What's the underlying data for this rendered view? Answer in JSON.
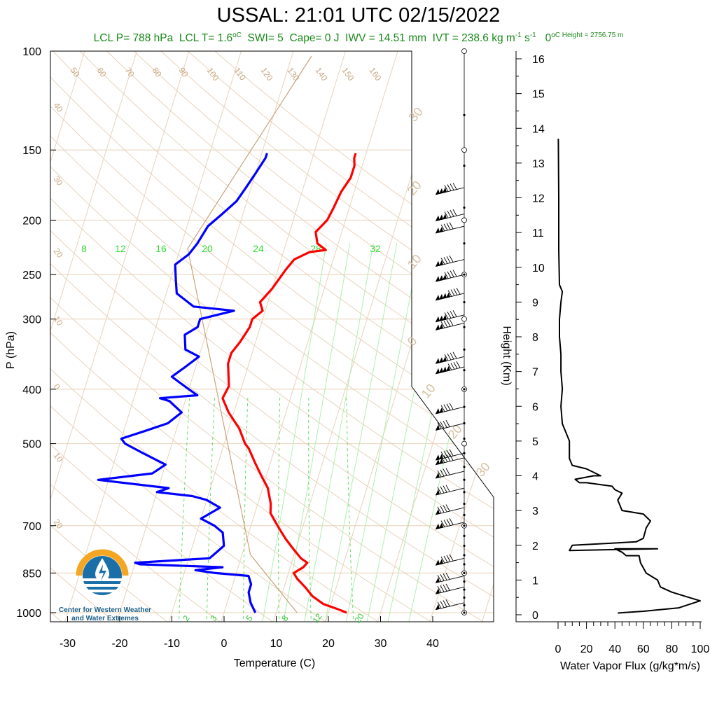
{
  "header": {
    "title": "USSAL: 21:01 UTC 02/15/2022",
    "lcl_p": "LCL P= 788 hPa",
    "lcl_t": "LCL T= 1.6",
    "lcl_t_unit": "oC",
    "swi": "SWI= 5",
    "cape": "Cape= 0 J",
    "iwv": "IWV = 14.51 mm",
    "ivt": "IVT = 238.6 kg m",
    "ivt_exp1": "-1",
    "ivt_mid": " s",
    "ivt_exp2": "-1",
    "zero_height": "0",
    "zero_height_unit": "oC Height = 2756.75 m"
  },
  "logo": {
    "line1": "Center for Western Weather",
    "line2": "and Water Extremes"
  },
  "colors": {
    "temperature": "#ff0000",
    "dewpoint": "#0000ff",
    "isotherm": "#c8a882",
    "mixing_ratio": "#33dd33",
    "logo_orange": "#f5a623",
    "logo_blue": "#1b6fa8"
  },
  "chart_data": [
    {
      "type": "line",
      "subtype": "skew-t",
      "xlabel": "Temperature (C)",
      "ylabel": "P (hPa)",
      "xlim": [
        -34,
        52
      ],
      "ylim": [
        1000,
        100
      ],
      "y_scale": "log",
      "x_ticks": [
        "-30",
        "-20",
        "-10",
        "0",
        "10",
        "20",
        "30",
        "40"
      ],
      "y_ticks": [
        "100",
        "150",
        "200",
        "250",
        "300",
        "400",
        "500",
        "700",
        "850",
        "1000"
      ],
      "isotherm_labels_upper": [
        "50",
        "60",
        "70",
        "80",
        "90",
        "100",
        "110",
        "120",
        "130",
        "140",
        "150",
        "160"
      ],
      "isotherm_labels_left": [
        "40",
        "30",
        "20",
        "10",
        "0",
        "10",
        "20"
      ],
      "isotherm_labels_right": [
        "30",
        "20",
        "10",
        "0",
        "10",
        "20",
        "30"
      ],
      "mixing_ratio_labels_upper": [
        "8",
        "12",
        "16",
        "20",
        "24",
        "28",
        "32"
      ],
      "mixing_ratio_labels_lower": [
        "2",
        "3",
        "5",
        "8",
        "12",
        "20"
      ],
      "series": [
        {
          "name": "Temperature",
          "points": [
            [
              23.5,
              1000
            ],
            [
              21.5,
              985
            ],
            [
              18.5,
              965
            ],
            [
              16,
              935
            ],
            [
              14,
              900
            ],
            [
              12,
              870
            ],
            [
              11,
              850
            ],
            [
              12.5,
              830
            ],
            [
              13,
              815
            ],
            [
              11.5,
              800
            ],
            [
              9.5,
              770
            ],
            [
              7.5,
              740
            ],
            [
              6,
              715
            ],
            [
              4.5,
              690
            ],
            [
              3,
              665
            ],
            [
              2.5,
              640
            ],
            [
              1,
              600
            ],
            [
              -1,
              570
            ],
            [
              -3,
              540
            ],
            [
              -5,
              510
            ],
            [
              -6,
              500
            ],
            [
              -8,
              470
            ],
            [
              -11,
              440
            ],
            [
              -13,
              415
            ],
            [
              -12.5,
              395
            ],
            [
              -14,
              360
            ],
            [
              -14,
              345
            ],
            [
              -13,
              330
            ],
            [
              -12,
              310
            ],
            [
              -12,
              300
            ],
            [
              -10.5,
              290
            ],
            [
              -11.5,
              280
            ],
            [
              -10,
              265
            ],
            [
              -8.5,
              245
            ],
            [
              -7.5,
              235
            ],
            [
              -5,
              228
            ],
            [
              -2,
              226
            ],
            [
              -4,
              220
            ],
            [
              -5,
              210
            ],
            [
              -3.5,
              200
            ],
            [
              -3,
              190
            ],
            [
              -2.5,
              178
            ],
            [
              -1.5,
              168
            ],
            [
              -1.5,
              160
            ],
            [
              -2,
              155
            ],
            [
              -2,
              152
            ]
          ]
        },
        {
          "name": "Dewpoint",
          "points": [
            [
              6,
              1000
            ],
            [
              4.5,
              960
            ],
            [
              3.5,
              920
            ],
            [
              3.5,
              890
            ],
            [
              2.5,
              860
            ],
            [
              -4,
              850
            ],
            [
              -8,
              840
            ],
            [
              -3,
              830
            ],
            [
              -19,
              820
            ],
            [
              -20,
              815
            ],
            [
              -6,
              800
            ],
            [
              -5,
              780
            ],
            [
              -4,
              760
            ],
            [
              -5,
              720
            ],
            [
              -7,
              700
            ],
            [
              -10,
              680
            ],
            [
              -7,
              650
            ],
            [
              -10,
              630
            ],
            [
              -13,
              620
            ],
            [
              -20,
              610
            ],
            [
              -18,
              600
            ],
            [
              -32,
              580
            ],
            [
              -22,
              565
            ],
            [
              -20,
              545
            ],
            [
              -25,
              520
            ],
            [
              -29,
              500
            ],
            [
              -30,
              490
            ],
            [
              -26,
              475
            ],
            [
              -22,
              460
            ],
            [
              -20,
              440
            ],
            [
              -23,
              420
            ],
            [
              -25,
              415
            ],
            [
              -18,
              410
            ],
            [
              -20,
              400
            ],
            [
              -22,
              390
            ],
            [
              -24,
              380
            ],
            [
              -22,
              365
            ],
            [
              -20,
              350
            ],
            [
              -23,
              340
            ],
            [
              -24,
              320
            ],
            [
              -22,
              310
            ],
            [
              -22,
              300
            ],
            [
              -16,
              290
            ],
            [
              -24,
              285
            ],
            [
              -28,
              270
            ],
            [
              -29,
              255
            ],
            [
              -30,
              240
            ],
            [
              -28,
              230
            ],
            [
              -27,
              220
            ],
            [
              -26,
              205
            ],
            [
              -24,
              195
            ],
            [
              -22,
              185
            ],
            [
              -21,
              175
            ],
            [
              -20,
              165
            ],
            [
              -19,
              155
            ],
            [
              -19,
              152
            ]
          ]
        }
      ]
    },
    {
      "type": "line",
      "xlabel": "Water Vapor Flux (g/kg*m/s)",
      "ylabel": "Height (Km)",
      "xlim": [
        0,
        100
      ],
      "ylim": [
        0,
        16
      ],
      "x_ticks": [
        "0",
        "20",
        "40",
        "60",
        "80",
        "100"
      ],
      "y_ticks": [
        "0",
        "1",
        "2",
        "3",
        "4",
        "5",
        "6",
        "7",
        "8",
        "9",
        "10",
        "11",
        "12",
        "13",
        "14",
        "15",
        "16"
      ],
      "series": [
        {
          "name": "Water Vapor Flux",
          "points": [
            [
              42,
              0.05
            ],
            [
              60,
              0.1
            ],
            [
              85,
              0.2
            ],
            [
              100,
              0.4
            ],
            [
              92,
              0.5
            ],
            [
              80,
              0.65
            ],
            [
              72,
              0.8
            ],
            [
              70,
              1.0
            ],
            [
              62,
              1.2
            ],
            [
              58,
              1.5
            ],
            [
              57,
              1.7
            ],
            [
              48,
              1.7
            ],
            [
              45,
              1.8
            ],
            [
              40,
              1.9
            ],
            [
              70,
              1.9
            ],
            [
              8,
              1.85
            ],
            [
              10,
              2.0
            ],
            [
              55,
              2.1
            ],
            [
              60,
              2.2
            ],
            [
              62,
              2.5
            ],
            [
              65,
              2.7
            ],
            [
              60,
              2.9
            ],
            [
              45,
              3.0
            ],
            [
              42,
              3.3
            ],
            [
              45,
              3.5
            ],
            [
              40,
              3.6
            ],
            [
              38,
              3.7
            ],
            [
              20,
              3.8
            ],
            [
              15,
              3.8
            ],
            [
              12,
              3.9
            ],
            [
              25,
              4.0
            ],
            [
              30,
              4.0
            ],
            [
              20,
              4.2
            ],
            [
              10,
              4.3
            ],
            [
              8,
              4.5
            ],
            [
              8,
              5.0
            ],
            [
              6,
              5.2
            ],
            [
              3,
              5.5
            ],
            [
              2,
              6.0
            ],
            [
              3,
              6.5
            ],
            [
              2,
              7.0
            ],
            [
              2,
              7.5
            ],
            [
              1,
              8.0
            ],
            [
              1,
              8.5
            ],
            [
              2,
              9.0
            ],
            [
              3,
              9.3
            ],
            [
              1,
              9.5
            ],
            [
              0.5,
              10.5
            ],
            [
              0.5,
              12.0
            ],
            [
              0.2,
              13.7
            ]
          ]
        }
      ]
    }
  ]
}
